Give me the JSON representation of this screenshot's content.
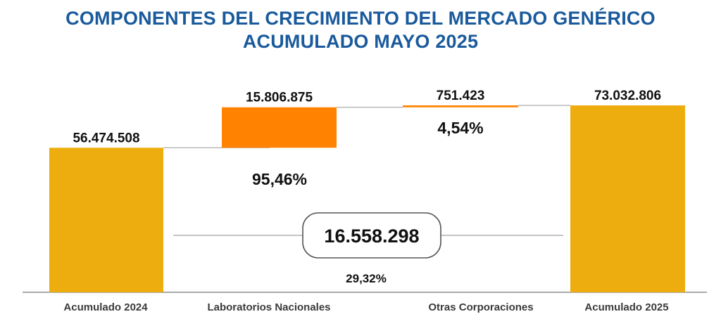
{
  "chart_data": {
    "type": "bar",
    "subtype": "waterfall",
    "title_line1": "COMPONENTES DEL CRECIMIENTO DEL MERCADO GENÉRICO",
    "title_line2": "ACUMULADO MAYO 2025",
    "categories": [
      "Acumulado 2024",
      "Laboratorios Nacionales",
      "Otras Corporaciones",
      "Acumulado 2025"
    ],
    "values": [
      56474508,
      15806875,
      751423,
      73032806
    ],
    "value_labels": [
      "56.474.508",
      "15.806.875",
      "751.423",
      "73.032.806"
    ],
    "kinds": [
      "total",
      "increase",
      "increase",
      "total"
    ],
    "contribution_labels": [
      "95,46%",
      "4,54%"
    ],
    "growth_total_label": "16.558.298",
    "growth_pct_label": "29,32%",
    "colors": {
      "total": "#eead0e",
      "increase": "#ff8300",
      "title": "#1a5a9c"
    }
  }
}
